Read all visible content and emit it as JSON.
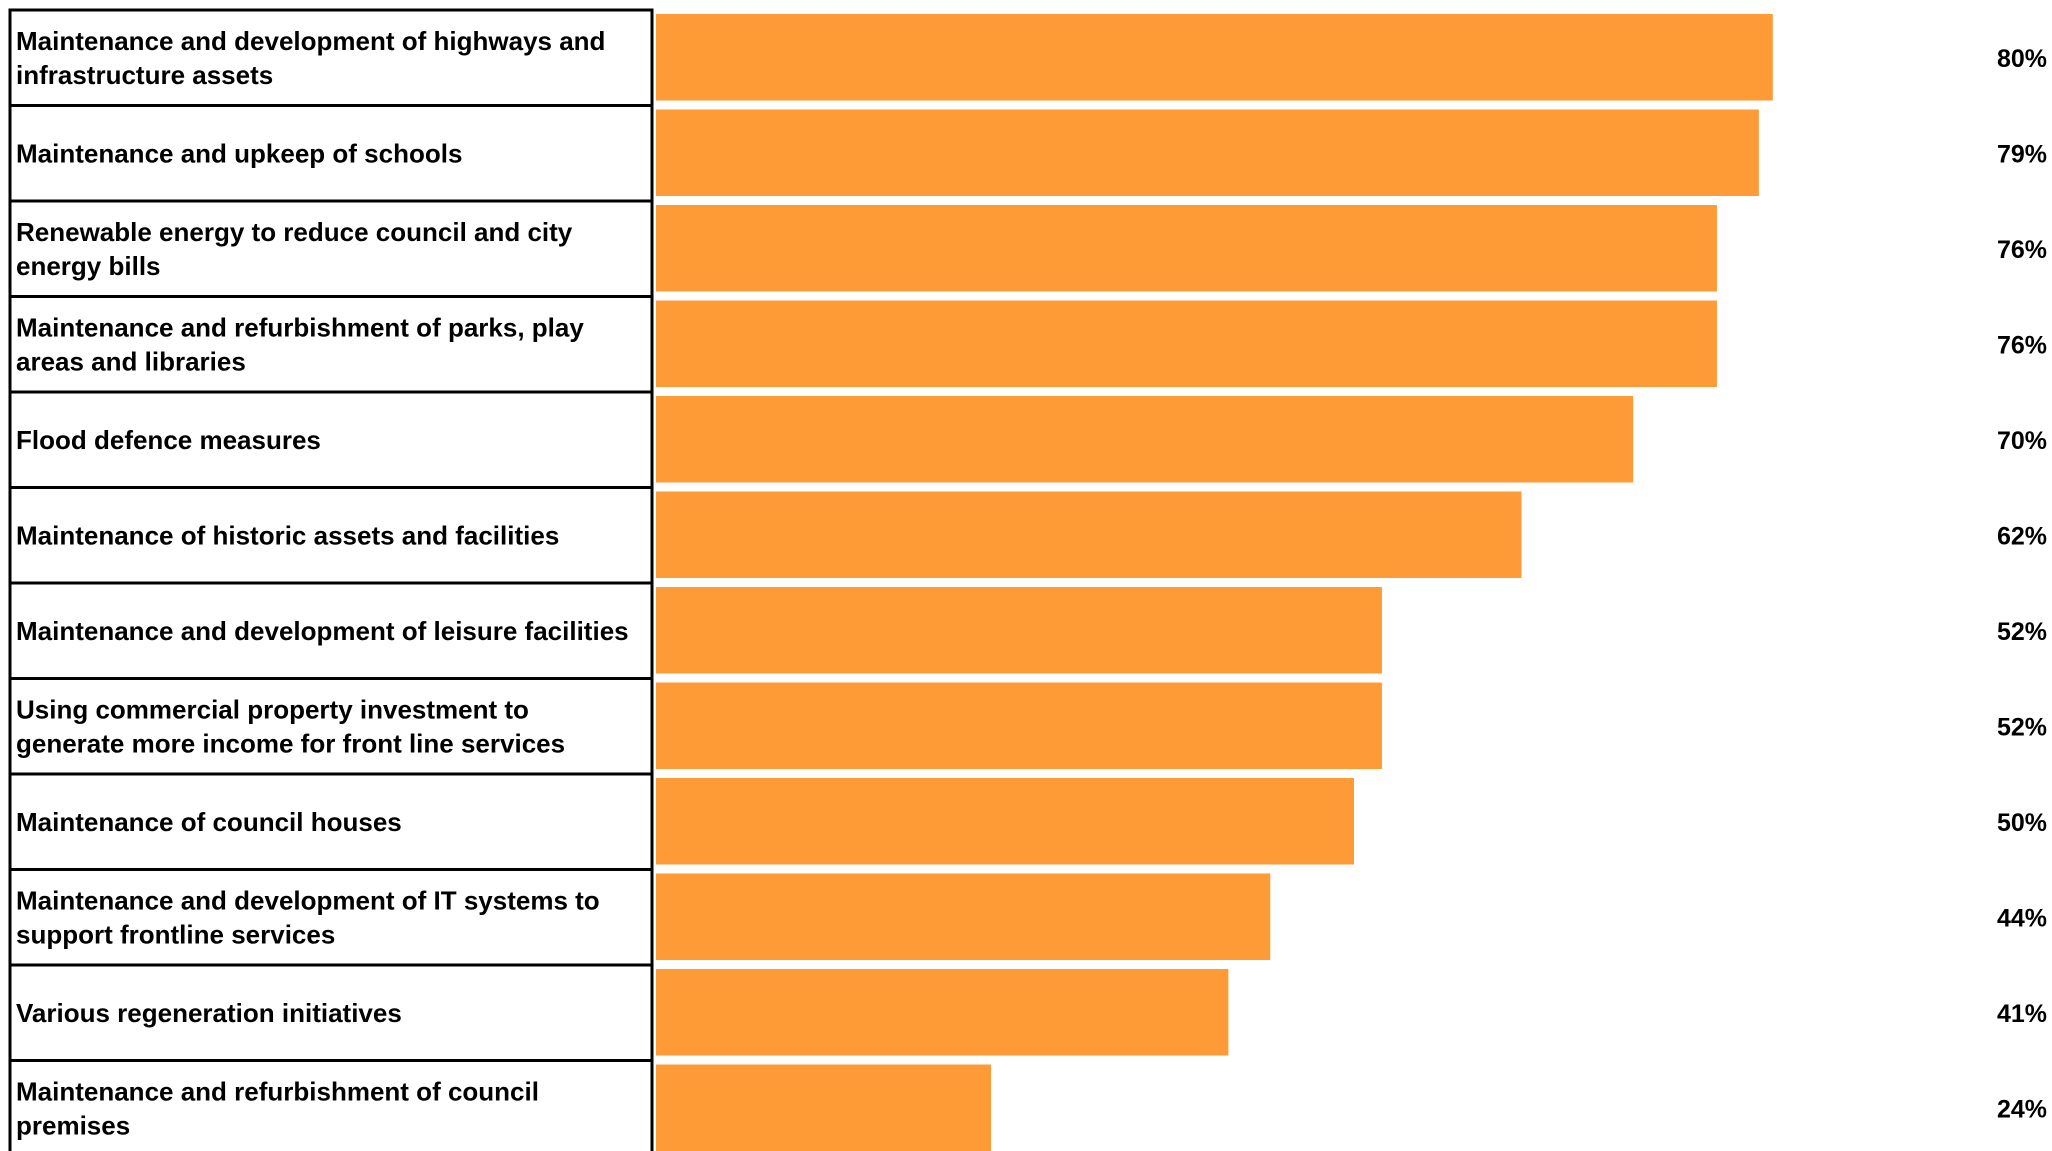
{
  "chart_data": {
    "type": "bar",
    "orientation": "horizontal",
    "categories": [
      [
        "Maintenance and development of highways and",
        "infrastructure assets"
      ],
      [
        "Maintenance and upkeep of schools"
      ],
      [
        "Renewable energy to reduce council and city",
        "energy bills"
      ],
      [
        "Maintenance and refurbishment of parks, play",
        "areas and libraries"
      ],
      [
        "Flood defence measures"
      ],
      [
        "Maintenance of historic assets and facilities"
      ],
      [
        "Maintenance and development of leisure facilities"
      ],
      [
        "Using commercial property investment to",
        "generate more income for front line services"
      ],
      [
        "Maintenance of council houses"
      ],
      [
        "Maintenance and development of IT systems to",
        "support frontline services"
      ],
      [
        "Various regeneration initiatives"
      ],
      [
        "Maintenance and refurbishment of council",
        "premises"
      ]
    ],
    "values": [
      80,
      79,
      76,
      76,
      70,
      62,
      52,
      52,
      50,
      44,
      41,
      24
    ],
    "value_labels": [
      "80%",
      "79%",
      "76%",
      "76%",
      "70%",
      "62%",
      "52%",
      "52%",
      "50%",
      "44%",
      "41%",
      "24%"
    ],
    "unit": "%",
    "xlim": [
      0,
      100
    ],
    "grid": false,
    "bar_color": "#FF9B37"
  }
}
